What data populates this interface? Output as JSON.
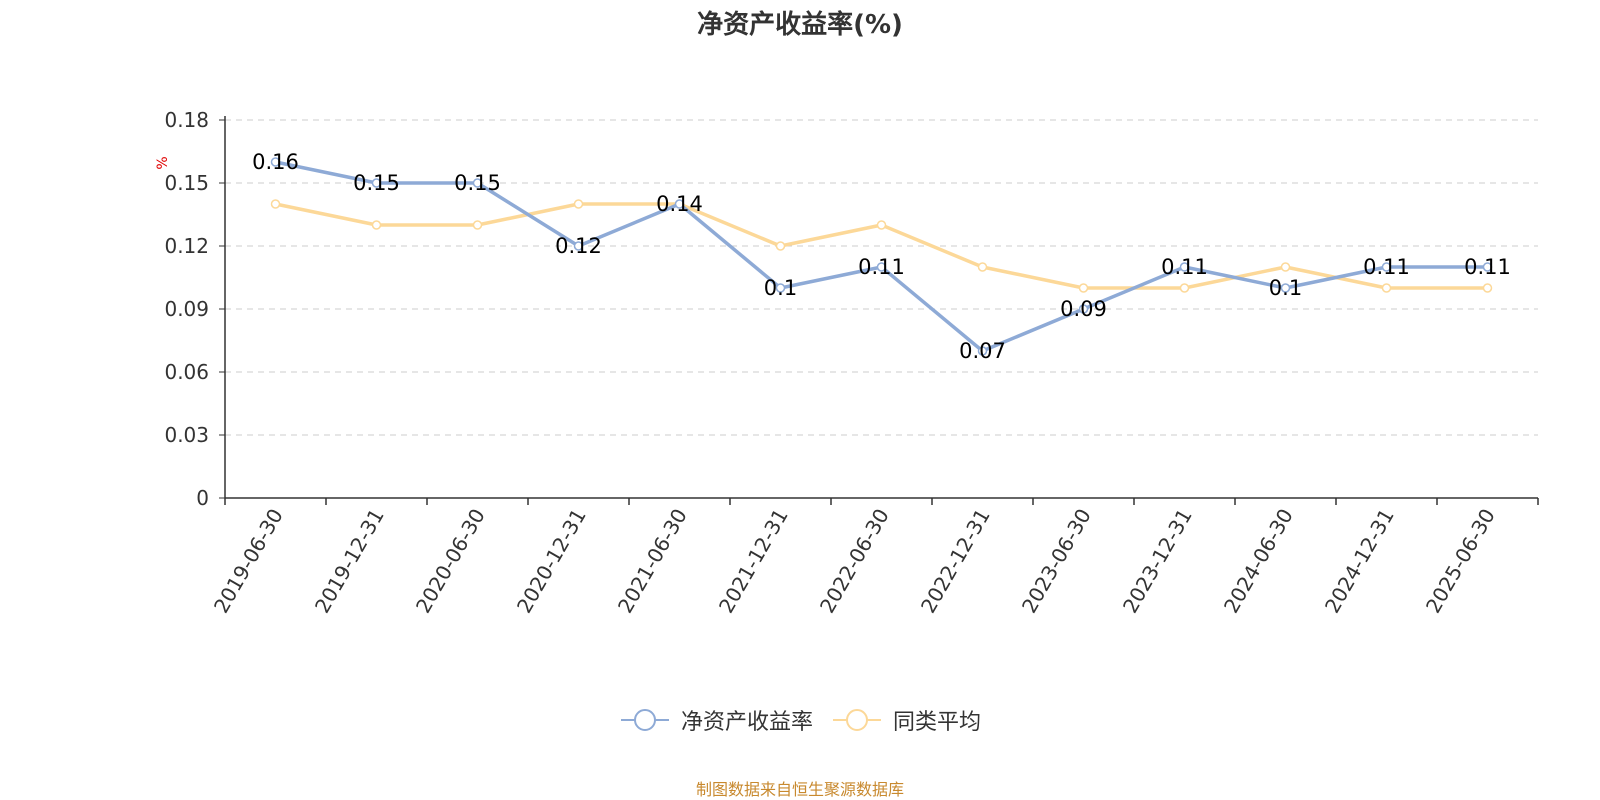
{
  "colors": {
    "series_0": "#8eaad6",
    "series_1": "#fcd898",
    "axis": "#333333",
    "grid": "#cccccc",
    "unit": "#e00000",
    "source": "#c8892e"
  },
  "chart_data": {
    "type": "line",
    "title": "净资产收益率(%)",
    "ylabel": "%",
    "ylim": [
      0,
      0.18
    ],
    "yticks": [
      "0",
      "0.03",
      "0.06",
      "0.09",
      "0.12",
      "0.15",
      "0.18"
    ],
    "grid": true,
    "legend_position": "bottom-center",
    "categories": [
      "2019-06-30",
      "2019-12-31",
      "2020-06-30",
      "2020-12-31",
      "2021-06-30",
      "2021-12-31",
      "2022-06-30",
      "2022-12-31",
      "2023-06-30",
      "2023-12-31",
      "2024-06-30",
      "2024-12-31",
      "2025-06-30"
    ],
    "series": [
      {
        "name": "净资产收益率",
        "values": [
          0.16,
          0.15,
          0.15,
          0.12,
          0.14,
          0.1,
          0.11,
          0.07,
          0.09,
          0.11,
          0.1,
          0.11,
          0.11
        ],
        "labels": [
          "0.16",
          "0.15",
          "0.15",
          "0.12",
          "0.14",
          "0.1",
          "0.11",
          "0.07",
          "0.09",
          "0.11",
          "0.1",
          "0.11",
          "0.11"
        ]
      },
      {
        "name": "同类平均",
        "values": [
          0.14,
          0.13,
          0.13,
          0.14,
          0.14,
          0.12,
          0.13,
          0.11,
          0.1,
          0.1,
          0.11,
          0.1,
          0.1
        ]
      }
    ]
  },
  "footer": {
    "source": "制图数据来自恒生聚源数据库"
  }
}
